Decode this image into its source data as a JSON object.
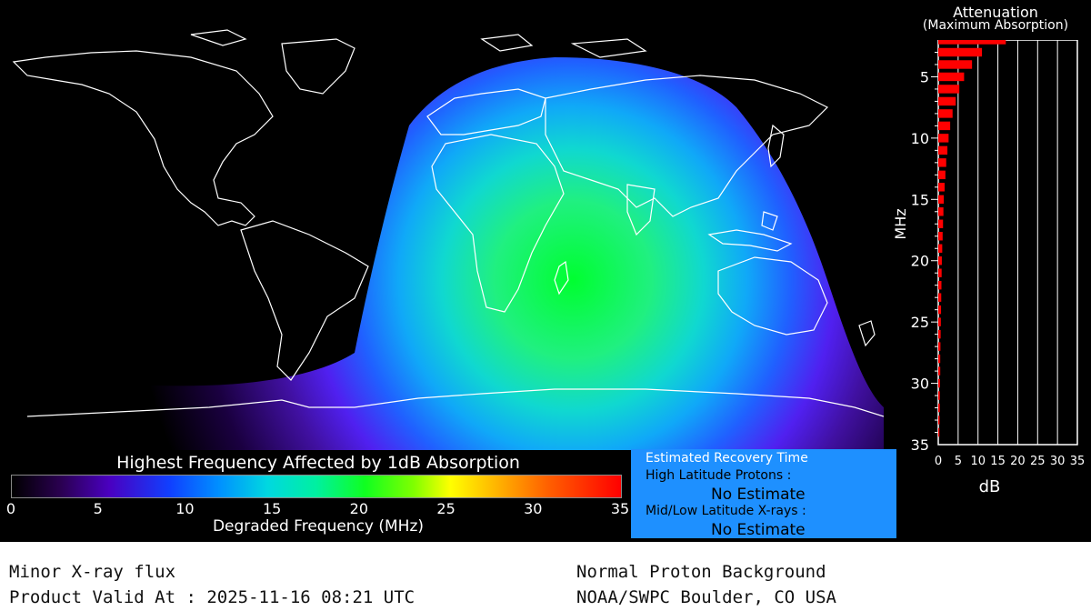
{
  "map": {
    "description_name": "world-absorption-map"
  },
  "colorbar": {
    "title": "Highest Frequency Affected by 1dB Absorption",
    "ticks": [
      "0",
      "5",
      "10",
      "15",
      "20",
      "25",
      "30",
      "35"
    ],
    "xlabel": "Degraded Frequency (MHz)"
  },
  "recovery": {
    "title": "Estimated Recovery Time",
    "high_label": "High Latitude Protons :",
    "high_value": "No Estimate",
    "mid_label": "Mid/Low Latitude X-rays :",
    "mid_value": "No Estimate"
  },
  "attenuation": {
    "title": "Attenuation",
    "subtitle": "(Maximum Absorption)"
  },
  "chart_data": {
    "type": "bar",
    "orientation": "horizontal",
    "title": "Attenuation",
    "subtitle": "(Maximum Absorption)",
    "xlabel": "dB",
    "ylabel": "MHz",
    "xlim": [
      0,
      35
    ],
    "ylim": [
      2,
      35
    ],
    "x_ticks": [
      "0",
      "5",
      "10",
      "15",
      "20",
      "25",
      "30",
      "35"
    ],
    "y_ticks": [
      "5",
      "10",
      "15",
      "20",
      "25",
      "30",
      "35"
    ],
    "y_tick_values": [
      5,
      10,
      15,
      20,
      25,
      30,
      35
    ],
    "frequencies": [
      2,
      3,
      4,
      5,
      6,
      7,
      8,
      9,
      10,
      11,
      12,
      13,
      14,
      15,
      16,
      17,
      18,
      19,
      20,
      21,
      22,
      23,
      24,
      25,
      26,
      27,
      28,
      29,
      30,
      31,
      32,
      33,
      34
    ],
    "values": [
      17,
      11,
      8.5,
      6.5,
      5.3,
      4.4,
      3.6,
      3.0,
      2.6,
      2.3,
      2.0,
      1.8,
      1.6,
      1.4,
      1.3,
      1.2,
      1.1,
      1.0,
      0.9,
      0.85,
      0.8,
      0.75,
      0.7,
      0.65,
      0.6,
      0.55,
      0.5,
      0.5,
      0.45,
      0.4,
      0.4,
      0.35,
      0.3
    ],
    "bar_color": "#ff0000"
  },
  "footer": {
    "left_line1": "Minor X-ray flux",
    "left_line2": "Product Valid At : 2025-11-16 08:21 UTC",
    "right_line1": "Normal Proton Background",
    "right_line2": "NOAA/SWPC Boulder, CO USA"
  }
}
